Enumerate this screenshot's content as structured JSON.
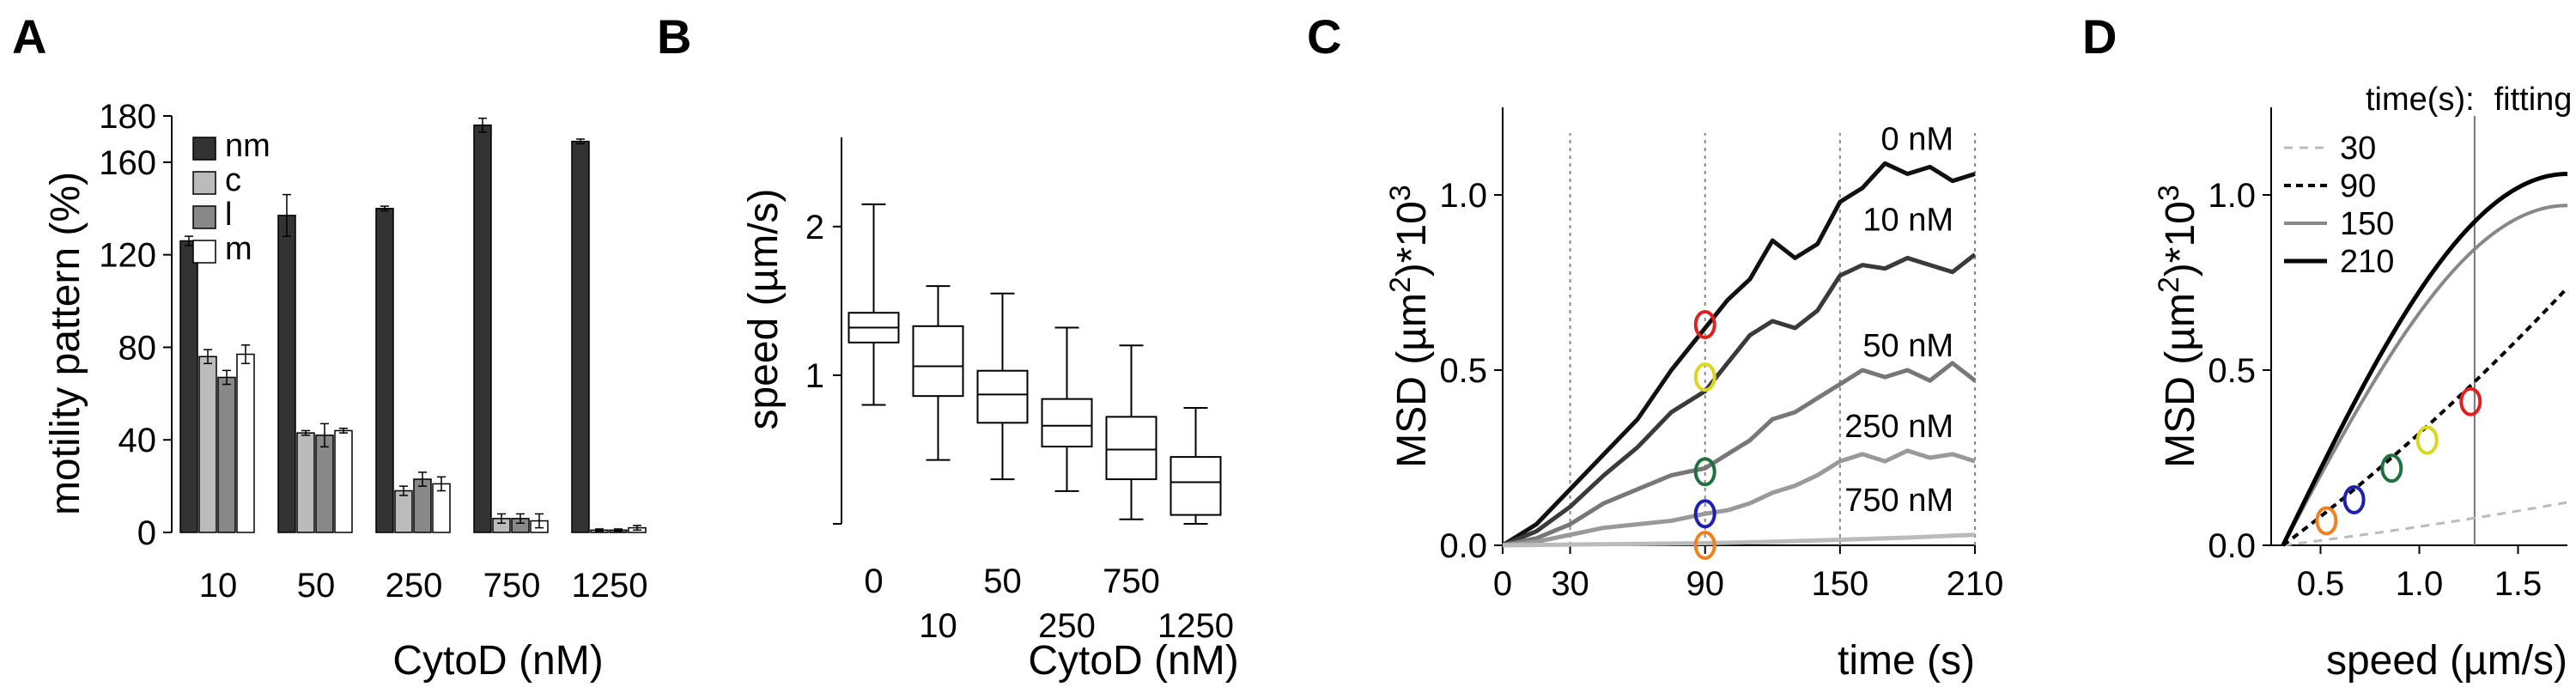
{
  "panels": [
    "A",
    "B",
    "C",
    "D"
  ],
  "chart_data": [
    {
      "type": "bar",
      "panel": "A",
      "ylabel": "motility pattern (%)",
      "xlabel": "CytoD (nM)",
      "categories": [
        "10",
        "50",
        "250",
        "750",
        "1250"
      ],
      "ylim": [
        0,
        180
      ],
      "yticks": [
        "0",
        "40",
        "80",
        "120",
        "160",
        "180"
      ],
      "legend_position": "top-left",
      "series": [
        {
          "name": "nm",
          "color": "#333333",
          "values": [
            126,
            137,
            140,
            176,
            169
          ],
          "errors": [
            2,
            9,
            1,
            3,
            1
          ]
        },
        {
          "name": "c",
          "color": "#bbbbbb",
          "values": [
            76,
            43,
            18,
            6,
            1
          ],
          "errors": [
            3,
            1,
            2,
            2,
            0.5
          ]
        },
        {
          "name": "l",
          "color": "#888888",
          "values": [
            67,
            42,
            23,
            6,
            1
          ],
          "errors": [
            3,
            5,
            3,
            2,
            0.5
          ]
        },
        {
          "name": "m",
          "color": "#ffffff",
          "values": [
            77,
            44,
            21,
            5,
            2
          ],
          "errors": [
            4,
            1,
            3,
            3,
            1
          ]
        }
      ]
    },
    {
      "type": "box",
      "panel": "B",
      "ylabel": "speed (µm/s)",
      "xlabel": "CytoD (nM)",
      "categories": [
        "0",
        "10",
        "50",
        "250",
        "750",
        "1250"
      ],
      "yticks": [
        "1",
        "2"
      ],
      "ylim": [
        0,
        2.6
      ],
      "boxes": [
        {
          "min": 0.8,
          "q1": 1.22,
          "median": 1.32,
          "q3": 1.42,
          "max": 2.15
        },
        {
          "min": 0.43,
          "q1": 0.86,
          "median": 1.06,
          "q3": 1.33,
          "max": 1.6
        },
        {
          "min": 0.3,
          "q1": 0.68,
          "median": 0.87,
          "q3": 1.03,
          "max": 1.55
        },
        {
          "min": 0.22,
          "q1": 0.52,
          "median": 0.66,
          "q3": 0.84,
          "max": 1.32
        },
        {
          "min": 0.03,
          "q1": 0.3,
          "median": 0.5,
          "q3": 0.72,
          "max": 1.2
        },
        {
          "min": 0.0,
          "q1": 0.06,
          "median": 0.28,
          "q3": 0.45,
          "max": 0.78
        }
      ]
    },
    {
      "type": "line",
      "panel": "C",
      "ylabel_parts": [
        "MSD (µm",
        "2",
        ")*10",
        "3"
      ],
      "xlabel": "time (s)",
      "xticks": [
        "0",
        "30",
        "90",
        "150",
        "210"
      ],
      "yticks": [
        "0.0",
        "0.5",
        "1.0"
      ],
      "xlim": [
        0,
        210
      ],
      "ylim": [
        0,
        1.25
      ],
      "vlines": [
        30,
        90,
        150,
        210
      ],
      "series": [
        {
          "name": "0 nM",
          "color": "#111111",
          "x": [
            0,
            15,
            30,
            45,
            60,
            75,
            90,
            100,
            110,
            120,
            130,
            140,
            150,
            160,
            170,
            180,
            190,
            200,
            210
          ],
          "y": [
            0,
            0.06,
            0.16,
            0.26,
            0.36,
            0.5,
            0.62,
            0.7,
            0.76,
            0.87,
            0.82,
            0.86,
            0.98,
            1.02,
            1.09,
            1.06,
            1.08,
            1.04,
            1.06
          ]
        },
        {
          "name": "10 nM",
          "color": "#3a3a3a",
          "x": [
            0,
            15,
            30,
            45,
            60,
            75,
            90,
            100,
            110,
            120,
            130,
            140,
            150,
            160,
            170,
            180,
            190,
            200,
            210
          ],
          "y": [
            0,
            0.04,
            0.11,
            0.2,
            0.28,
            0.38,
            0.44,
            0.52,
            0.6,
            0.64,
            0.62,
            0.67,
            0.77,
            0.8,
            0.79,
            0.82,
            0.8,
            0.78,
            0.83
          ]
        },
        {
          "name": "50 nM",
          "color": "#777777",
          "x": [
            0,
            15,
            30,
            45,
            60,
            75,
            90,
            100,
            110,
            120,
            130,
            140,
            150,
            160,
            170,
            180,
            190,
            200,
            210
          ],
          "y": [
            0,
            0.02,
            0.06,
            0.12,
            0.16,
            0.2,
            0.22,
            0.26,
            0.3,
            0.36,
            0.38,
            0.42,
            0.46,
            0.5,
            0.48,
            0.5,
            0.47,
            0.52,
            0.47
          ]
        },
        {
          "name": "250 nM",
          "color": "#999999",
          "x": [
            0,
            15,
            30,
            45,
            60,
            75,
            90,
            100,
            110,
            120,
            130,
            140,
            150,
            160,
            170,
            180,
            190,
            200,
            210
          ],
          "y": [
            0,
            0.01,
            0.03,
            0.05,
            0.06,
            0.07,
            0.09,
            0.1,
            0.12,
            0.15,
            0.17,
            0.2,
            0.24,
            0.26,
            0.24,
            0.27,
            0.25,
            0.26,
            0.24
          ]
        },
        {
          "name": "750 nM",
          "color": "#bbbbbb",
          "x": [
            0,
            30,
            60,
            90,
            120,
            150,
            180,
            210
          ],
          "y": [
            0,
            0.002,
            0.004,
            0.006,
            0.01,
            0.016,
            0.022,
            0.03
          ]
        }
      ],
      "markers": [
        {
          "x": 90,
          "y": 0.63,
          "color": "#e02020"
        },
        {
          "x": 90,
          "y": 0.48,
          "color": "#d8d820"
        },
        {
          "x": 90,
          "y": 0.21,
          "color": "#207040"
        },
        {
          "x": 90,
          "y": 0.09,
          "color": "#2020b0"
        },
        {
          "x": 90,
          "y": 0.0,
          "color": "#f08020"
        }
      ]
    },
    {
      "type": "line",
      "panel": "D",
      "ylabel_parts": [
        "MSD (µm",
        "2",
        ")*10",
        "3"
      ],
      "xlabel": "speed (µm/s)",
      "xticks": [
        "0.5",
        "1.0",
        "1.5"
      ],
      "yticks": [
        "0.0",
        "0.5",
        "1.0"
      ],
      "xlim": [
        0.25,
        1.75
      ],
      "ylim": [
        0,
        1.25
      ],
      "legend_title": "time(s):",
      "annotation": "fitting",
      "fit_line_x": 1.28,
      "series": [
        {
          "name": "30",
          "color": "#bbbbbb",
          "style": "dashed-light"
        },
        {
          "name": "90",
          "color": "#000000",
          "style": "dashed"
        },
        {
          "name": "150",
          "color": "#888888",
          "style": "solid"
        },
        {
          "name": "210",
          "color": "#000000",
          "style": "solid"
        }
      ],
      "markers": [
        {
          "x": 0.53,
          "y": 0.07,
          "color": "#f08020"
        },
        {
          "x": 0.67,
          "y": 0.13,
          "color": "#2020b0"
        },
        {
          "x": 0.86,
          "y": 0.22,
          "color": "#207040"
        },
        {
          "x": 1.04,
          "y": 0.3,
          "color": "#d8d820"
        },
        {
          "x": 1.26,
          "y": 0.41,
          "color": "#e02020"
        }
      ]
    }
  ]
}
